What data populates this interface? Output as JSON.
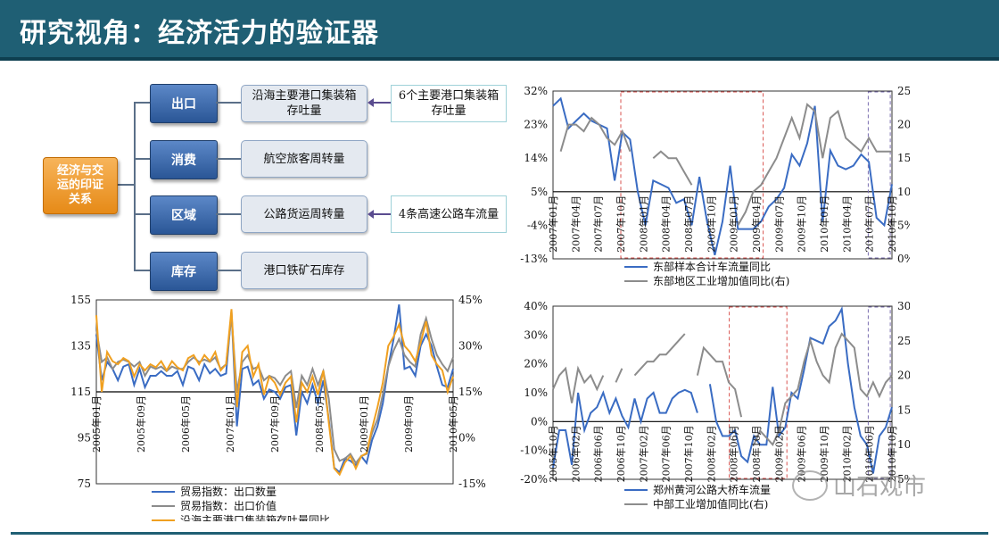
{
  "title": "研究视角：经济活力的验证器",
  "diagram": {
    "root": [
      "经济与交",
      "运的印证",
      "关系"
    ],
    "rows": [
      {
        "category": "出口",
        "metric": [
          "沿海主要港口集装箱",
          "存吐量"
        ],
        "source": [
          "6个主要港口集装箱",
          "存吐量"
        ]
      },
      {
        "category": "消费",
        "metric": [
          "航空旅客周转量"
        ],
        "source": null
      },
      {
        "category": "区域",
        "metric": [
          "公路货运周转量"
        ],
        "source": [
          "4条高速公路车流量"
        ]
      },
      {
        "category": "库存",
        "metric": [
          "港口铁矿石库存"
        ],
        "source": null
      }
    ]
  },
  "watermark": "山石观市",
  "chart_data": [
    {
      "type": "line",
      "panel": "top-right",
      "title": "",
      "left_axis": {
        "ticks": [
          "32%",
          "23%",
          "14%",
          "5%",
          "-4%",
          "-13%"
        ],
        "range": [
          -13,
          32
        ]
      },
      "right_axis": {
        "ticks": [
          "25%",
          "20%",
          "15%",
          "10%",
          "5%",
          "0%"
        ],
        "range": [
          0,
          25
        ]
      },
      "x_ticks": [
        "2007年01月",
        "2007年04月",
        "2007年07月",
        "2007年10月",
        "2008年01月",
        "2008年04月",
        "2008年07月",
        "2008年10月",
        "2009年01月",
        "2009年04月",
        "2009年07月",
        "2009年10月",
        "2010年01月",
        "2010年04月",
        "2010年07月",
        "2010年10月"
      ],
      "legend": [
        "东部样本合计车流量同比",
        "东部地区工业增加值同比(右)"
      ],
      "series": [
        {
          "name": "东部样本合计车流量同比",
          "axis": "left",
          "color": "#3a6cc3",
          "values": [
            28,
            30,
            22,
            24,
            26,
            24,
            23,
            22,
            8,
            21,
            19,
            5,
            -4,
            8,
            7,
            6,
            2,
            3,
            -4,
            9,
            -3,
            -12,
            -3,
            12,
            -5,
            -5,
            -5,
            -3,
            1,
            3,
            6,
            15,
            12,
            18,
            28,
            -3,
            16,
            12,
            11,
            12,
            15,
            13,
            -2,
            -4,
            7
          ]
        },
        {
          "name": "东部地区工业增加值同比(右)",
          "axis": "right",
          "color": "#8c8c8c",
          "values": [
            null,
            16,
            20,
            20,
            19,
            21,
            20,
            18,
            17,
            19,
            16,
            null,
            null,
            15,
            16,
            15,
            15,
            13,
            11,
            null,
            null,
            9,
            null,
            null,
            5,
            7,
            10,
            11,
            13,
            15,
            18,
            21,
            18,
            23,
            22,
            15,
            21,
            22,
            18,
            17,
            16,
            18,
            16,
            16,
            16
          ]
        }
      ],
      "highlights": [
        {
          "from": "2007年10月",
          "to": "2008年11月",
          "color": "#d9534f"
        },
        {
          "from": "2010年08月",
          "to": "2010年10月",
          "color": "#7b6fb0"
        }
      ]
    },
    {
      "type": "line",
      "panel": "bottom-left",
      "title": "",
      "left_axis": {
        "ticks": [
          "155",
          "135",
          "115",
          "95",
          "75"
        ],
        "range": [
          75,
          155
        ]
      },
      "right_axis": {
        "ticks": [
          "45%",
          "30%",
          "15%",
          "0%",
          "-15%"
        ],
        "range": [
          -15,
          45
        ]
      },
      "x_ticks": [
        "2005年01月",
        "2005年09月",
        "2006年05月",
        "2007年01月",
        "2007年09月",
        "2008年05月",
        "2009年01月",
        "2009年09月",
        "2010年05月"
      ],
      "legend": [
        "贸易指数：出口数量",
        "贸易指数：出口价值",
        "沿海主要港口集装箱存吐量同比"
      ],
      "series": [
        {
          "name": "贸易指数：出口数量",
          "axis": "left",
          "color": "#3a6cc3",
          "values": [
            140,
            120,
            128,
            125,
            120,
            126,
            127,
            118,
            125,
            117,
            122,
            122,
            124,
            122,
            122,
            124,
            118,
            126,
            125,
            120,
            127,
            123,
            125,
            122,
            123,
            150,
            100,
            125,
            126,
            118,
            120,
            112,
            116,
            115,
            112,
            117,
            118,
            96,
            115,
            110,
            118,
            110,
            120,
            103,
            82,
            80,
            86,
            85,
            83,
            87,
            84,
            94,
            100,
            110,
            126,
            138,
            153,
            125,
            126,
            122,
            135,
            140,
            135,
            126,
            118,
            117,
            125
          ]
        },
        {
          "name": "贸易指数：出口价值",
          "axis": "left",
          "color": "#8c8c8c",
          "values": [
            142,
            128,
            130,
            125,
            128,
            129,
            128,
            126,
            128,
            122,
            126,
            125,
            126,
            124,
            126,
            125,
            125,
            128,
            130,
            128,
            129,
            128,
            130,
            125,
            127,
            148,
            115,
            128,
            131,
            125,
            126,
            120,
            122,
            121,
            118,
            122,
            124,
            108,
            122,
            118,
            125,
            118,
            124,
            112,
            90,
            85,
            86,
            88,
            84,
            87,
            88,
            97,
            103,
            114,
            126,
            133,
            138,
            131,
            128,
            126,
            140,
            147,
            138,
            131,
            127,
            124,
            130
          ]
        },
        {
          "name": "沿海主要港口集装箱存吐量同比",
          "axis": "right",
          "color": "#f0a020",
          "values": [
            40,
            15,
            28,
            25,
            24,
            26,
            25,
            20,
            24,
            22,
            24,
            23,
            25,
            22,
            25,
            23,
            22,
            26,
            27,
            24,
            27,
            25,
            28,
            22,
            24,
            42,
            10,
            28,
            30,
            20,
            24,
            14,
            20,
            18,
            14,
            18,
            20,
            5,
            18,
            15,
            20,
            14,
            22,
            5,
            -10,
            -12,
            -8,
            -6,
            -10,
            -6,
            -5,
            3,
            10,
            18,
            30,
            33,
            37,
            30,
            28,
            25,
            31,
            38,
            27,
            24,
            22,
            15,
            20
          ]
        }
      ]
    },
    {
      "type": "line",
      "panel": "bottom-right",
      "title": "",
      "left_axis": {
        "ticks": [
          "40%",
          "30%",
          "20%",
          "10%",
          "0%",
          "-10%",
          "-20%"
        ],
        "range": [
          -20,
          40
        ]
      },
      "right_axis": {
        "ticks": [
          "30%",
          "25%",
          "20%",
          "15%",
          "10%",
          "5%"
        ],
        "range": [
          5,
          30
        ]
      },
      "x_ticks": [
        "2005年10月",
        "2006年02月",
        "2006年06月",
        "2006年10月",
        "2007年02月",
        "2007年06月",
        "2007年10月",
        "2008年02月",
        "2008年06月",
        "2008年10月",
        "2009年02月",
        "2009年06月",
        "2009年10月",
        "2010年02月",
        "2010年06月",
        "2010年10月"
      ],
      "legend": [
        "郑州黄河公路大桥车流量",
        "中部工业增加值同比(右)"
      ],
      "series": [
        {
          "name": "郑州黄河公路大桥车流量",
          "axis": "left",
          "color": "#3a6cc3",
          "values": [
            -16,
            -3,
            -3,
            -15,
            10,
            -3,
            3,
            5,
            10,
            3,
            8,
            2,
            -2,
            8,
            0,
            8,
            10,
            3,
            3,
            8,
            10,
            11,
            10,
            3,
            null,
            13,
            0,
            -5,
            -5,
            -3,
            -12,
            -14,
            -5,
            -8,
            -8,
            12,
            -5,
            -2,
            10,
            8,
            18,
            29,
            28,
            27,
            33,
            35,
            39,
            20,
            5,
            -5,
            -8,
            -18,
            -5,
            -2,
            5
          ]
        },
        {
          "name": "中部工业增加值同比(右)",
          "axis": "right",
          "color": "#8c8c8c",
          "values": [
            18,
            20,
            21,
            16,
            21,
            19,
            20,
            18,
            20,
            null,
            19,
            21,
            null,
            20,
            21,
            22,
            22,
            23,
            23,
            24,
            25,
            26,
            null,
            20,
            24,
            23,
            22,
            22,
            19,
            18,
            14,
            null,
            10,
            12,
            11,
            10,
            12,
            16,
            17,
            18,
            22,
            25,
            22,
            20,
            19,
            24,
            26,
            25,
            24,
            18,
            17,
            19,
            17,
            19,
            20
          ]
        }
      ],
      "highlights": [
        {
          "from": "2007年11月",
          "to": "2008年10月",
          "color": "#d9534f"
        },
        {
          "from": "2010年07月",
          "to": "2010年10月",
          "color": "#7b6fb0"
        }
      ]
    }
  ]
}
